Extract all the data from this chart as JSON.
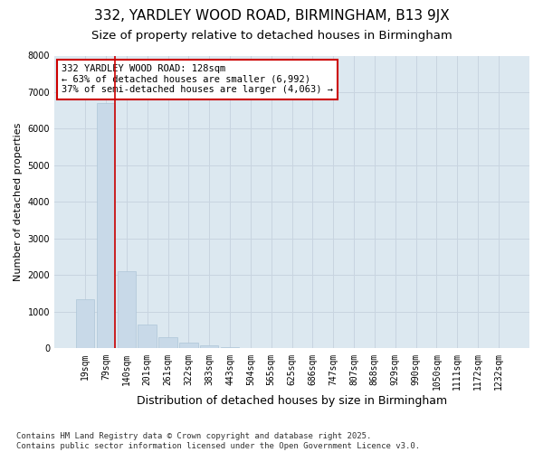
{
  "title": "332, YARDLEY WOOD ROAD, BIRMINGHAM, B13 9JX",
  "subtitle": "Size of property relative to detached houses in Birmingham",
  "xlabel": "Distribution of detached houses by size in Birmingham",
  "ylabel": "Number of detached properties",
  "bar_color": "#c8d9e8",
  "bar_edge_color": "#aec6d8",
  "vline_color": "#cc0000",
  "vline_x_index": 1,
  "annotation_text": "332 YARDLEY WOOD ROAD: 128sqm\n← 63% of detached houses are smaller (6,992)\n37% of semi-detached houses are larger (4,063) →",
  "annotation_box_edge": "#cc0000",
  "categories": [
    "19sqm",
    "79sqm",
    "140sqm",
    "201sqm",
    "261sqm",
    "322sqm",
    "383sqm",
    "443sqm",
    "504sqm",
    "565sqm",
    "625sqm",
    "686sqm",
    "747sqm",
    "807sqm",
    "868sqm",
    "929sqm",
    "990sqm",
    "1050sqm",
    "1111sqm",
    "1172sqm",
    "1232sqm"
  ],
  "values": [
    1350,
    6700,
    2100,
    650,
    320,
    150,
    80,
    30,
    15,
    0,
    0,
    0,
    0,
    0,
    0,
    0,
    0,
    0,
    0,
    0,
    0
  ],
  "ylim": [
    0,
    8000
  ],
  "yticks": [
    0,
    1000,
    2000,
    3000,
    4000,
    5000,
    6000,
    7000,
    8000
  ],
  "grid_color": "#c8d4e0",
  "background_color": "#dce8f0",
  "footnote": "Contains HM Land Registry data © Crown copyright and database right 2025.\nContains public sector information licensed under the Open Government Licence v3.0.",
  "title_fontsize": 11,
  "subtitle_fontsize": 9.5,
  "xlabel_fontsize": 9,
  "ylabel_fontsize": 8,
  "tick_fontsize": 7,
  "annot_fontsize": 7.5,
  "footnote_fontsize": 6.5
}
